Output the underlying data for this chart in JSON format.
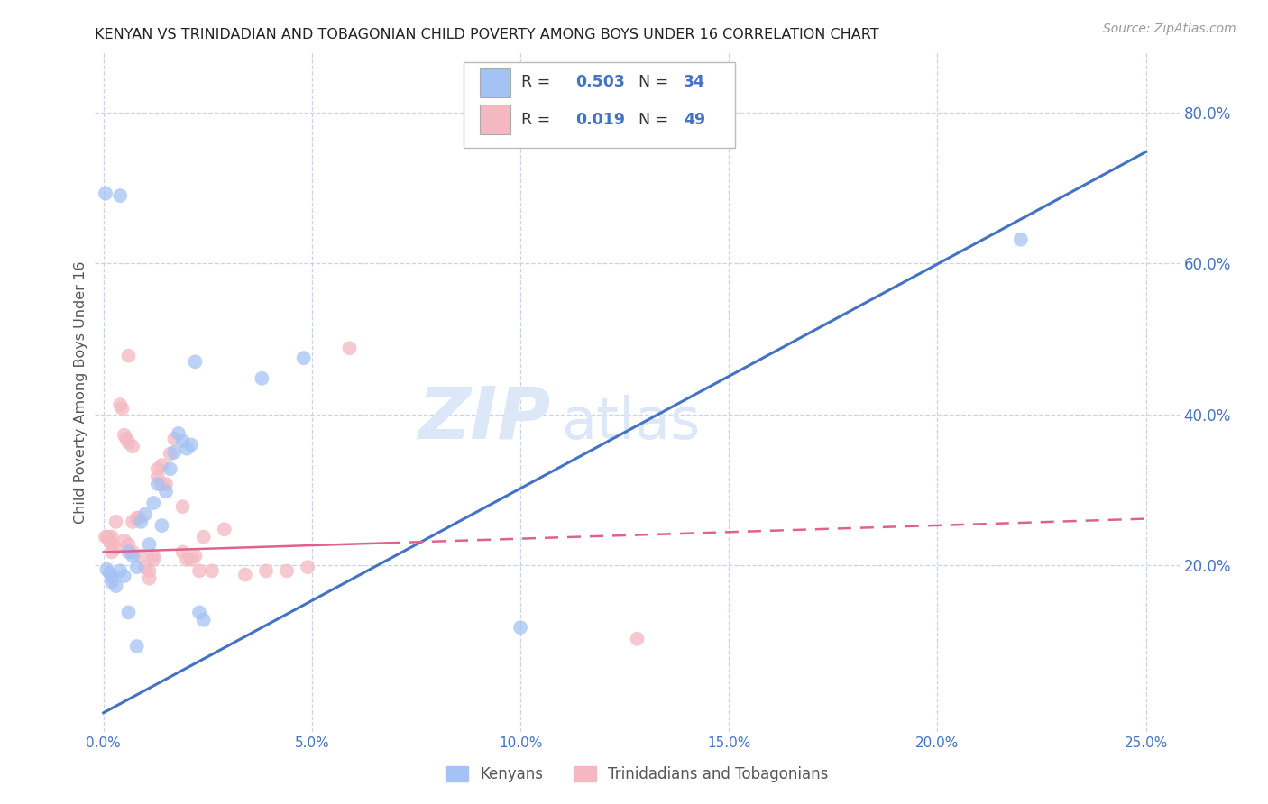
{
  "title": "KENYAN VS TRINIDADIAN AND TOBAGONIAN CHILD POVERTY AMONG BOYS UNDER 16 CORRELATION CHART",
  "source": "Source: ZipAtlas.com",
  "ylabel": "Child Poverty Among Boys Under 16",
  "xlabel_ticks": [
    "0.0%",
    "5.0%",
    "10.0%",
    "15.0%",
    "20.0%",
    "25.0%"
  ],
  "xlabel_vals": [
    0.0,
    0.05,
    0.1,
    0.15,
    0.2,
    0.25
  ],
  "ylabel_ticks_right": [
    "20.0%",
    "40.0%",
    "60.0%",
    "80.0%"
  ],
  "ylabel_vals_right": [
    0.2,
    0.4,
    0.6,
    0.8
  ],
  "xlim": [
    -0.002,
    0.258
  ],
  "ylim": [
    -0.02,
    0.88
  ],
  "kenyan_color": "#a4c2f4",
  "tt_color": "#f4b8c1",
  "kenyan_R": 0.503,
  "kenyan_N": 34,
  "tt_R": 0.019,
  "tt_N": 49,
  "legend_R_color": "#4472c4",
  "legend_tt_R_color": "#cc4466",
  "watermark": "ZIPatlas",
  "watermark_color": "#dce8f8",
  "bg_color": "#ffffff",
  "grid_color": "#c9d4e8",
  "right_tick_color": "#4472c4",
  "kenyan_line_x": [
    0.0,
    0.25
  ],
  "kenyan_line_y": [
    0.005,
    0.748
  ],
  "tt_line_x": [
    0.0,
    0.25
  ],
  "tt_line_y": [
    0.218,
    0.262
  ],
  "kenyan_scatter": [
    [
      0.0008,
      0.195
    ],
    [
      0.0015,
      0.19
    ],
    [
      0.002,
      0.185
    ],
    [
      0.002,
      0.178
    ],
    [
      0.003,
      0.173
    ],
    [
      0.004,
      0.193
    ],
    [
      0.005,
      0.186
    ],
    [
      0.006,
      0.218
    ],
    [
      0.007,
      0.213
    ],
    [
      0.008,
      0.198
    ],
    [
      0.009,
      0.258
    ],
    [
      0.01,
      0.268
    ],
    [
      0.011,
      0.228
    ],
    [
      0.012,
      0.283
    ],
    [
      0.013,
      0.308
    ],
    [
      0.014,
      0.253
    ],
    [
      0.015,
      0.298
    ],
    [
      0.016,
      0.328
    ],
    [
      0.017,
      0.35
    ],
    [
      0.018,
      0.375
    ],
    [
      0.019,
      0.365
    ],
    [
      0.02,
      0.355
    ],
    [
      0.021,
      0.36
    ],
    [
      0.022,
      0.47
    ],
    [
      0.023,
      0.138
    ],
    [
      0.024,
      0.128
    ],
    [
      0.0005,
      0.693
    ],
    [
      0.004,
      0.69
    ],
    [
      0.006,
      0.138
    ],
    [
      0.008,
      0.093
    ],
    [
      0.22,
      0.632
    ],
    [
      0.1,
      0.118
    ],
    [
      0.038,
      0.448
    ],
    [
      0.048,
      0.475
    ]
  ],
  "tt_scatter": [
    [
      0.0005,
      0.238
    ],
    [
      0.001,
      0.238
    ],
    [
      0.0015,
      0.233
    ],
    [
      0.002,
      0.238
    ],
    [
      0.002,
      0.218
    ],
    [
      0.003,
      0.258
    ],
    [
      0.004,
      0.413
    ],
    [
      0.0045,
      0.408
    ],
    [
      0.005,
      0.373
    ],
    [
      0.0055,
      0.368
    ],
    [
      0.006,
      0.363
    ],
    [
      0.007,
      0.358
    ],
    [
      0.007,
      0.258
    ],
    [
      0.008,
      0.263
    ],
    [
      0.0085,
      0.263
    ],
    [
      0.009,
      0.213
    ],
    [
      0.01,
      0.198
    ],
    [
      0.011,
      0.193
    ],
    [
      0.011,
      0.183
    ],
    [
      0.012,
      0.208
    ],
    [
      0.012,
      0.213
    ],
    [
      0.013,
      0.328
    ],
    [
      0.013,
      0.318
    ],
    [
      0.014,
      0.333
    ],
    [
      0.014,
      0.308
    ],
    [
      0.015,
      0.308
    ],
    [
      0.016,
      0.348
    ],
    [
      0.017,
      0.368
    ],
    [
      0.019,
      0.278
    ],
    [
      0.019,
      0.218
    ],
    [
      0.02,
      0.208
    ],
    [
      0.021,
      0.208
    ],
    [
      0.022,
      0.213
    ],
    [
      0.023,
      0.193
    ],
    [
      0.024,
      0.238
    ],
    [
      0.026,
      0.193
    ],
    [
      0.029,
      0.248
    ],
    [
      0.034,
      0.188
    ],
    [
      0.039,
      0.193
    ],
    [
      0.044,
      0.193
    ],
    [
      0.049,
      0.198
    ],
    [
      0.059,
      0.488
    ],
    [
      0.002,
      0.228
    ],
    [
      0.003,
      0.223
    ],
    [
      0.005,
      0.233
    ],
    [
      0.006,
      0.228
    ],
    [
      0.007,
      0.218
    ],
    [
      0.128,
      0.103
    ],
    [
      0.006,
      0.478
    ]
  ]
}
